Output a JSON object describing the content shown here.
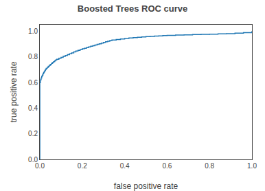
{
  "chart_data": {
    "type": "line",
    "title": "Boosted Trees ROC curve",
    "xlabel": "false positive rate",
    "ylabel": "true positive rate",
    "color": "#1f77b4",
    "line_style": "steps",
    "grid": false,
    "xlim": [
      0.0,
      1.0
    ],
    "ylim": [
      0.0,
      1.05
    ],
    "xticks": [
      {
        "value": 0.0,
        "label": "0.0"
      },
      0.2,
      0.4,
      0.6,
      0.8,
      {
        "value": 1.0,
        "label": "1.0"
      }
    ],
    "yticks": [
      {
        "value": 0.0,
        "label": "0.0"
      },
      0.2,
      0.4,
      0.6,
      0.8,
      {
        "value": 1.0,
        "label": "1.0"
      }
    ],
    "x": [
      0.0,
      0.0,
      0.0,
      0.0,
      0.003,
      0.003,
      0.006,
      0.006,
      0.009,
      0.009,
      0.012,
      0.012,
      0.015,
      0.015,
      0.018,
      0.018,
      0.021,
      0.021,
      0.024,
      0.024,
      0.027,
      0.027,
      0.03,
      0.03,
      0.035,
      0.035,
      0.04,
      0.04,
      0.045,
      0.045,
      0.05,
      0.05,
      0.055,
      0.055,
      0.06,
      0.06,
      0.065,
      0.065,
      0.07,
      0.07,
      0.075,
      0.075,
      0.08,
      0.08,
      0.09,
      0.09,
      0.1,
      0.1,
      0.11,
      0.11,
      0.12,
      0.12,
      0.13,
      0.13,
      0.14,
      0.14,
      0.15,
      0.15,
      0.16,
      0.16,
      0.17,
      0.17,
      0.18,
      0.18,
      0.19,
      0.19,
      0.2,
      0.2,
      0.21,
      0.21,
      0.22,
      0.22,
      0.23,
      0.23,
      0.24,
      0.24,
      0.25,
      0.25,
      0.26,
      0.26,
      0.27,
      0.27,
      0.28,
      0.28,
      0.29,
      0.29,
      0.3,
      0.3,
      0.31,
      0.31,
      0.32,
      0.32,
      0.33,
      0.33,
      0.34,
      0.34,
      0.36,
      0.36,
      0.38,
      0.38,
      0.4,
      0.4,
      0.42,
      0.42,
      0.44,
      0.44,
      0.46,
      0.46,
      0.48,
      0.48,
      0.5,
      0.5,
      0.52,
      0.52,
      0.54,
      0.54,
      0.56,
      0.56,
      0.58,
      0.58,
      0.6,
      0.6,
      0.64,
      0.64,
      0.68,
      0.68,
      0.72,
      0.72,
      0.76,
      0.76,
      0.8,
      0.8,
      0.84,
      0.84,
      0.88,
      0.88,
      0.92,
      0.92,
      0.96,
      0.96,
      1.0
    ],
    "values": [
      0.0,
      0.29,
      0.4,
      0.6,
      0.6,
      0.62,
      0.62,
      0.635,
      0.635,
      0.648,
      0.648,
      0.658,
      0.658,
      0.668,
      0.668,
      0.678,
      0.678,
      0.686,
      0.686,
      0.694,
      0.694,
      0.702,
      0.702,
      0.71,
      0.71,
      0.718,
      0.718,
      0.726,
      0.726,
      0.734,
      0.734,
      0.74,
      0.74,
      0.748,
      0.748,
      0.756,
      0.756,
      0.762,
      0.762,
      0.769,
      0.769,
      0.775,
      0.775,
      0.781,
      0.781,
      0.789,
      0.789,
      0.796,
      0.796,
      0.803,
      0.803,
      0.81,
      0.81,
      0.817,
      0.817,
      0.824,
      0.824,
      0.831,
      0.831,
      0.838,
      0.838,
      0.845,
      0.845,
      0.851,
      0.851,
      0.856,
      0.856,
      0.862,
      0.862,
      0.867,
      0.867,
      0.872,
      0.872,
      0.877,
      0.877,
      0.882,
      0.882,
      0.887,
      0.887,
      0.892,
      0.892,
      0.897,
      0.897,
      0.902,
      0.902,
      0.907,
      0.907,
      0.912,
      0.912,
      0.917,
      0.917,
      0.922,
      0.922,
      0.927,
      0.927,
      0.931,
      0.931,
      0.935,
      0.935,
      0.939,
      0.939,
      0.943,
      0.943,
      0.947,
      0.947,
      0.95,
      0.95,
      0.952,
      0.952,
      0.955,
      0.955,
      0.957,
      0.957,
      0.959,
      0.959,
      0.961,
      0.961,
      0.963,
      0.963,
      0.965,
      0.965,
      0.967,
      0.967,
      0.969,
      0.969,
      0.971,
      0.971,
      0.973,
      0.973,
      0.975,
      0.975,
      0.977,
      0.977,
      0.979,
      0.979,
      0.981,
      0.981,
      0.984,
      0.984,
      0.988,
      1.0
    ]
  }
}
